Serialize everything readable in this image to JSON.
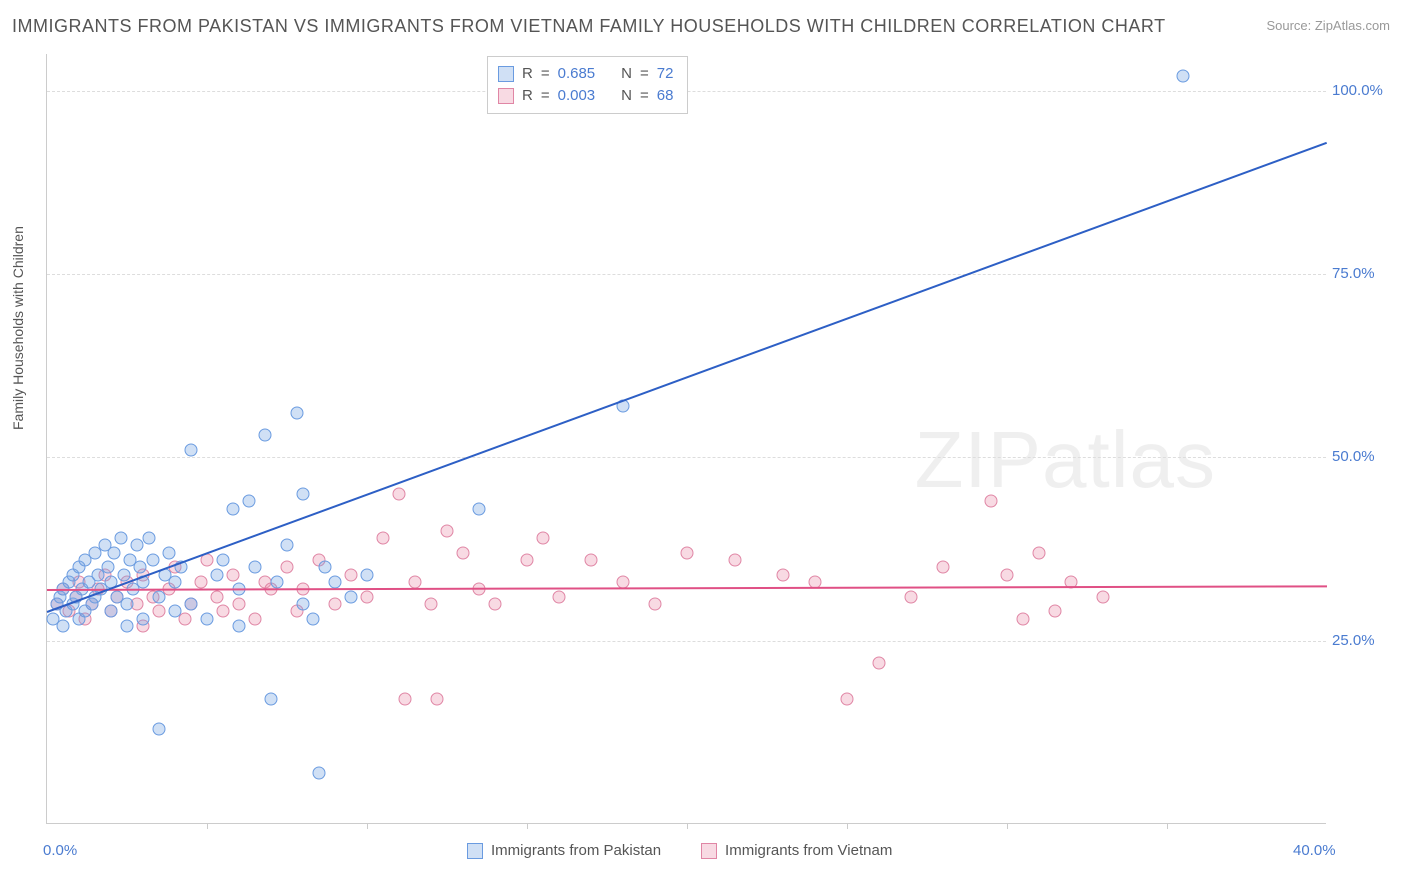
{
  "title": "IMMIGRANTS FROM PAKISTAN VS IMMIGRANTS FROM VIETNAM FAMILY HOUSEHOLDS WITH CHILDREN CORRELATION CHART",
  "source": "Source: ZipAtlas.com",
  "watermark": "ZIPatlas",
  "ylabel": "Family Households with Children",
  "chart": {
    "type": "scatter",
    "xlim": [
      0,
      40
    ],
    "ylim": [
      0,
      105
    ],
    "yticks": [
      {
        "v": 25,
        "label": "25.0%"
      },
      {
        "v": 50,
        "label": "50.0%"
      },
      {
        "v": 75,
        "label": "75.0%"
      },
      {
        "v": 100,
        "label": "100.0%"
      }
    ],
    "xticks_major": [
      {
        "v": 0,
        "label": "0.0%"
      },
      {
        "v": 40,
        "label": "40.0%"
      }
    ],
    "xticks_minor": [
      5,
      10,
      15,
      20,
      25,
      30,
      35
    ],
    "background_color": "#ffffff",
    "grid_color": "#dddddd",
    "axis_color": "#cccccc",
    "marker_radius": 6.5,
    "marker_stroke_width": 1.2,
    "series": {
      "pakistan": {
        "label": "Immigrants from Pakistan",
        "fill": "rgba(120,165,225,0.35)",
        "stroke": "#6a9be0",
        "r_value": "0.685",
        "n_value": "72",
        "regression": {
          "x1": 0,
          "y1": 29,
          "x2": 40,
          "y2": 93,
          "color": "#2d5fc5",
          "width": 2
        },
        "points": [
          [
            0.2,
            28
          ],
          [
            0.3,
            30
          ],
          [
            0.4,
            31
          ],
          [
            0.5,
            27
          ],
          [
            0.5,
            32
          ],
          [
            0.6,
            29
          ],
          [
            0.7,
            33
          ],
          [
            0.8,
            30
          ],
          [
            0.8,
            34
          ],
          [
            0.9,
            31
          ],
          [
            1.0,
            28
          ],
          [
            1.0,
            35
          ],
          [
            1.1,
            32
          ],
          [
            1.2,
            29
          ],
          [
            1.2,
            36
          ],
          [
            1.3,
            33
          ],
          [
            1.4,
            30
          ],
          [
            1.5,
            37
          ],
          [
            1.5,
            31
          ],
          [
            1.6,
            34
          ],
          [
            1.7,
            32
          ],
          [
            1.8,
            38
          ],
          [
            1.9,
            35
          ],
          [
            2.0,
            33
          ],
          [
            2.0,
            29
          ],
          [
            2.1,
            37
          ],
          [
            2.2,
            31
          ],
          [
            2.3,
            39
          ],
          [
            2.4,
            34
          ],
          [
            2.5,
            30
          ],
          [
            2.5,
            27
          ],
          [
            2.6,
            36
          ],
          [
            2.7,
            32
          ],
          [
            2.8,
            38
          ],
          [
            2.9,
            35
          ],
          [
            3.0,
            33
          ],
          [
            3.0,
            28
          ],
          [
            3.2,
            39
          ],
          [
            3.3,
            36
          ],
          [
            3.5,
            31
          ],
          [
            3.5,
            13
          ],
          [
            3.7,
            34
          ],
          [
            3.8,
            37
          ],
          [
            4.0,
            33
          ],
          [
            4.0,
            29
          ],
          [
            4.2,
            35
          ],
          [
            4.5,
            51
          ],
          [
            4.5,
            30
          ],
          [
            5.0,
            28
          ],
          [
            5.3,
            34
          ],
          [
            5.5,
            36
          ],
          [
            5.8,
            43
          ],
          [
            6.0,
            32
          ],
          [
            6.0,
            27
          ],
          [
            6.3,
            44
          ],
          [
            6.5,
            35
          ],
          [
            6.8,
            53
          ],
          [
            7.0,
            17
          ],
          [
            7.2,
            33
          ],
          [
            7.5,
            38
          ],
          [
            7.8,
            56
          ],
          [
            8.0,
            30
          ],
          [
            8.0,
            45
          ],
          [
            8.3,
            28
          ],
          [
            8.5,
            7
          ],
          [
            8.7,
            35
          ],
          [
            9.0,
            33
          ],
          [
            9.5,
            31
          ],
          [
            10.0,
            34
          ],
          [
            13.5,
            43
          ],
          [
            18.0,
            57
          ],
          [
            35.5,
            102
          ]
        ]
      },
      "vietnam": {
        "label": "Immigrants from Vietnam",
        "fill": "rgba(235,150,175,0.35)",
        "stroke": "#e086a5",
        "r_value": "0.003",
        "n_value": "68",
        "regression": {
          "x1": 0,
          "y1": 32,
          "x2": 40,
          "y2": 32.5,
          "color": "#e05085",
          "width": 2
        },
        "points": [
          [
            0.3,
            30
          ],
          [
            0.5,
            32
          ],
          [
            0.7,
            29
          ],
          [
            0.9,
            31
          ],
          [
            1.0,
            33
          ],
          [
            1.2,
            28
          ],
          [
            1.4,
            30
          ],
          [
            1.6,
            32
          ],
          [
            1.8,
            34
          ],
          [
            2.0,
            29
          ],
          [
            2.2,
            31
          ],
          [
            2.5,
            33
          ],
          [
            2.8,
            30
          ],
          [
            3.0,
            27
          ],
          [
            3.0,
            34
          ],
          [
            3.3,
            31
          ],
          [
            3.5,
            29
          ],
          [
            3.8,
            32
          ],
          [
            4.0,
            35
          ],
          [
            4.3,
            28
          ],
          [
            4.5,
            30
          ],
          [
            4.8,
            33
          ],
          [
            5.0,
            36
          ],
          [
            5.3,
            31
          ],
          [
            5.5,
            29
          ],
          [
            5.8,
            34
          ],
          [
            6.0,
            30
          ],
          [
            6.5,
            28
          ],
          [
            6.8,
            33
          ],
          [
            7.0,
            32
          ],
          [
            7.5,
            35
          ],
          [
            7.8,
            29
          ],
          [
            8.0,
            32
          ],
          [
            8.5,
            36
          ],
          [
            9.0,
            30
          ],
          [
            9.5,
            34
          ],
          [
            10.0,
            31
          ],
          [
            10.5,
            39
          ],
          [
            11.0,
            45
          ],
          [
            11.2,
            17
          ],
          [
            11.5,
            33
          ],
          [
            12.0,
            30
          ],
          [
            12.2,
            17
          ],
          [
            12.5,
            40
          ],
          [
            13.0,
            37
          ],
          [
            13.5,
            32
          ],
          [
            14.0,
            30
          ],
          [
            15.0,
            36
          ],
          [
            15.5,
            39
          ],
          [
            16.0,
            31
          ],
          [
            17.0,
            36
          ],
          [
            18.0,
            33
          ],
          [
            19.0,
            30
          ],
          [
            20.0,
            37
          ],
          [
            21.5,
            36
          ],
          [
            23.0,
            34
          ],
          [
            24.0,
            33
          ],
          [
            25.0,
            17
          ],
          [
            26.0,
            22
          ],
          [
            27.0,
            31
          ],
          [
            28.0,
            35
          ],
          [
            29.5,
            44
          ],
          [
            30.0,
            34
          ],
          [
            30.5,
            28
          ],
          [
            31.0,
            37
          ],
          [
            31.5,
            29
          ],
          [
            32.0,
            33
          ],
          [
            33.0,
            31
          ]
        ]
      }
    }
  },
  "legend_top": {
    "r_label": "R",
    "n_label": "N",
    "eq": "="
  }
}
